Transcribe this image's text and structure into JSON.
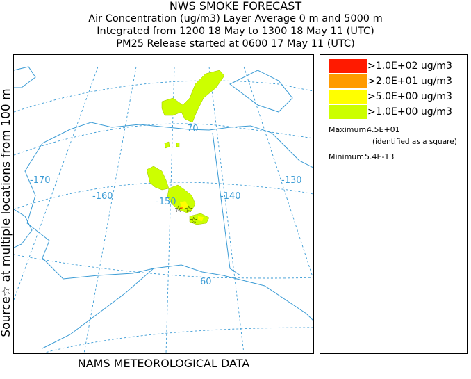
{
  "header": {
    "title": "NWS SMOKE FORECAST",
    "line2": "Air Concentration (ug/m3) Layer Average    0 m and  5000 m",
    "line3": "Integrated from 1200 18 May to 1300 18 May 11 (UTC)",
    "line4": "PM25 Release started at 0600 17 May 11 (UTC)"
  },
  "side_label": "Source☆ at multiple locations from  100 m",
  "footer": "NAMS METEOROLOGICAL DATA",
  "map": {
    "longitude_labels": [
      "-170",
      "-160",
      "-150",
      "-140",
      "-130"
    ],
    "latitude_labels": [
      "70",
      "60"
    ],
    "source_marker": "☆",
    "colors": {
      "coast": "#3a9bd5",
      "grid": "#3a9bd5"
    }
  },
  "legend": {
    "items": [
      {
        "label": ">1.0E+02 ug/m3",
        "color": "#ff1a00"
      },
      {
        "label": ">2.0E+01 ug/m3",
        "color": "#ff9a00"
      },
      {
        "label": ">5.0E+00 ug/m3",
        "color": "#ffff00"
      },
      {
        "label": ">1.0E+00 ug/m3",
        "color": "#ccff00"
      }
    ],
    "maximum_label": "Maximum:",
    "maximum_value": "4.5E+01",
    "maximum_note": "(identified as a square)",
    "minimum_label": "Minimum:",
    "minimum_value": "5.4E-13"
  }
}
